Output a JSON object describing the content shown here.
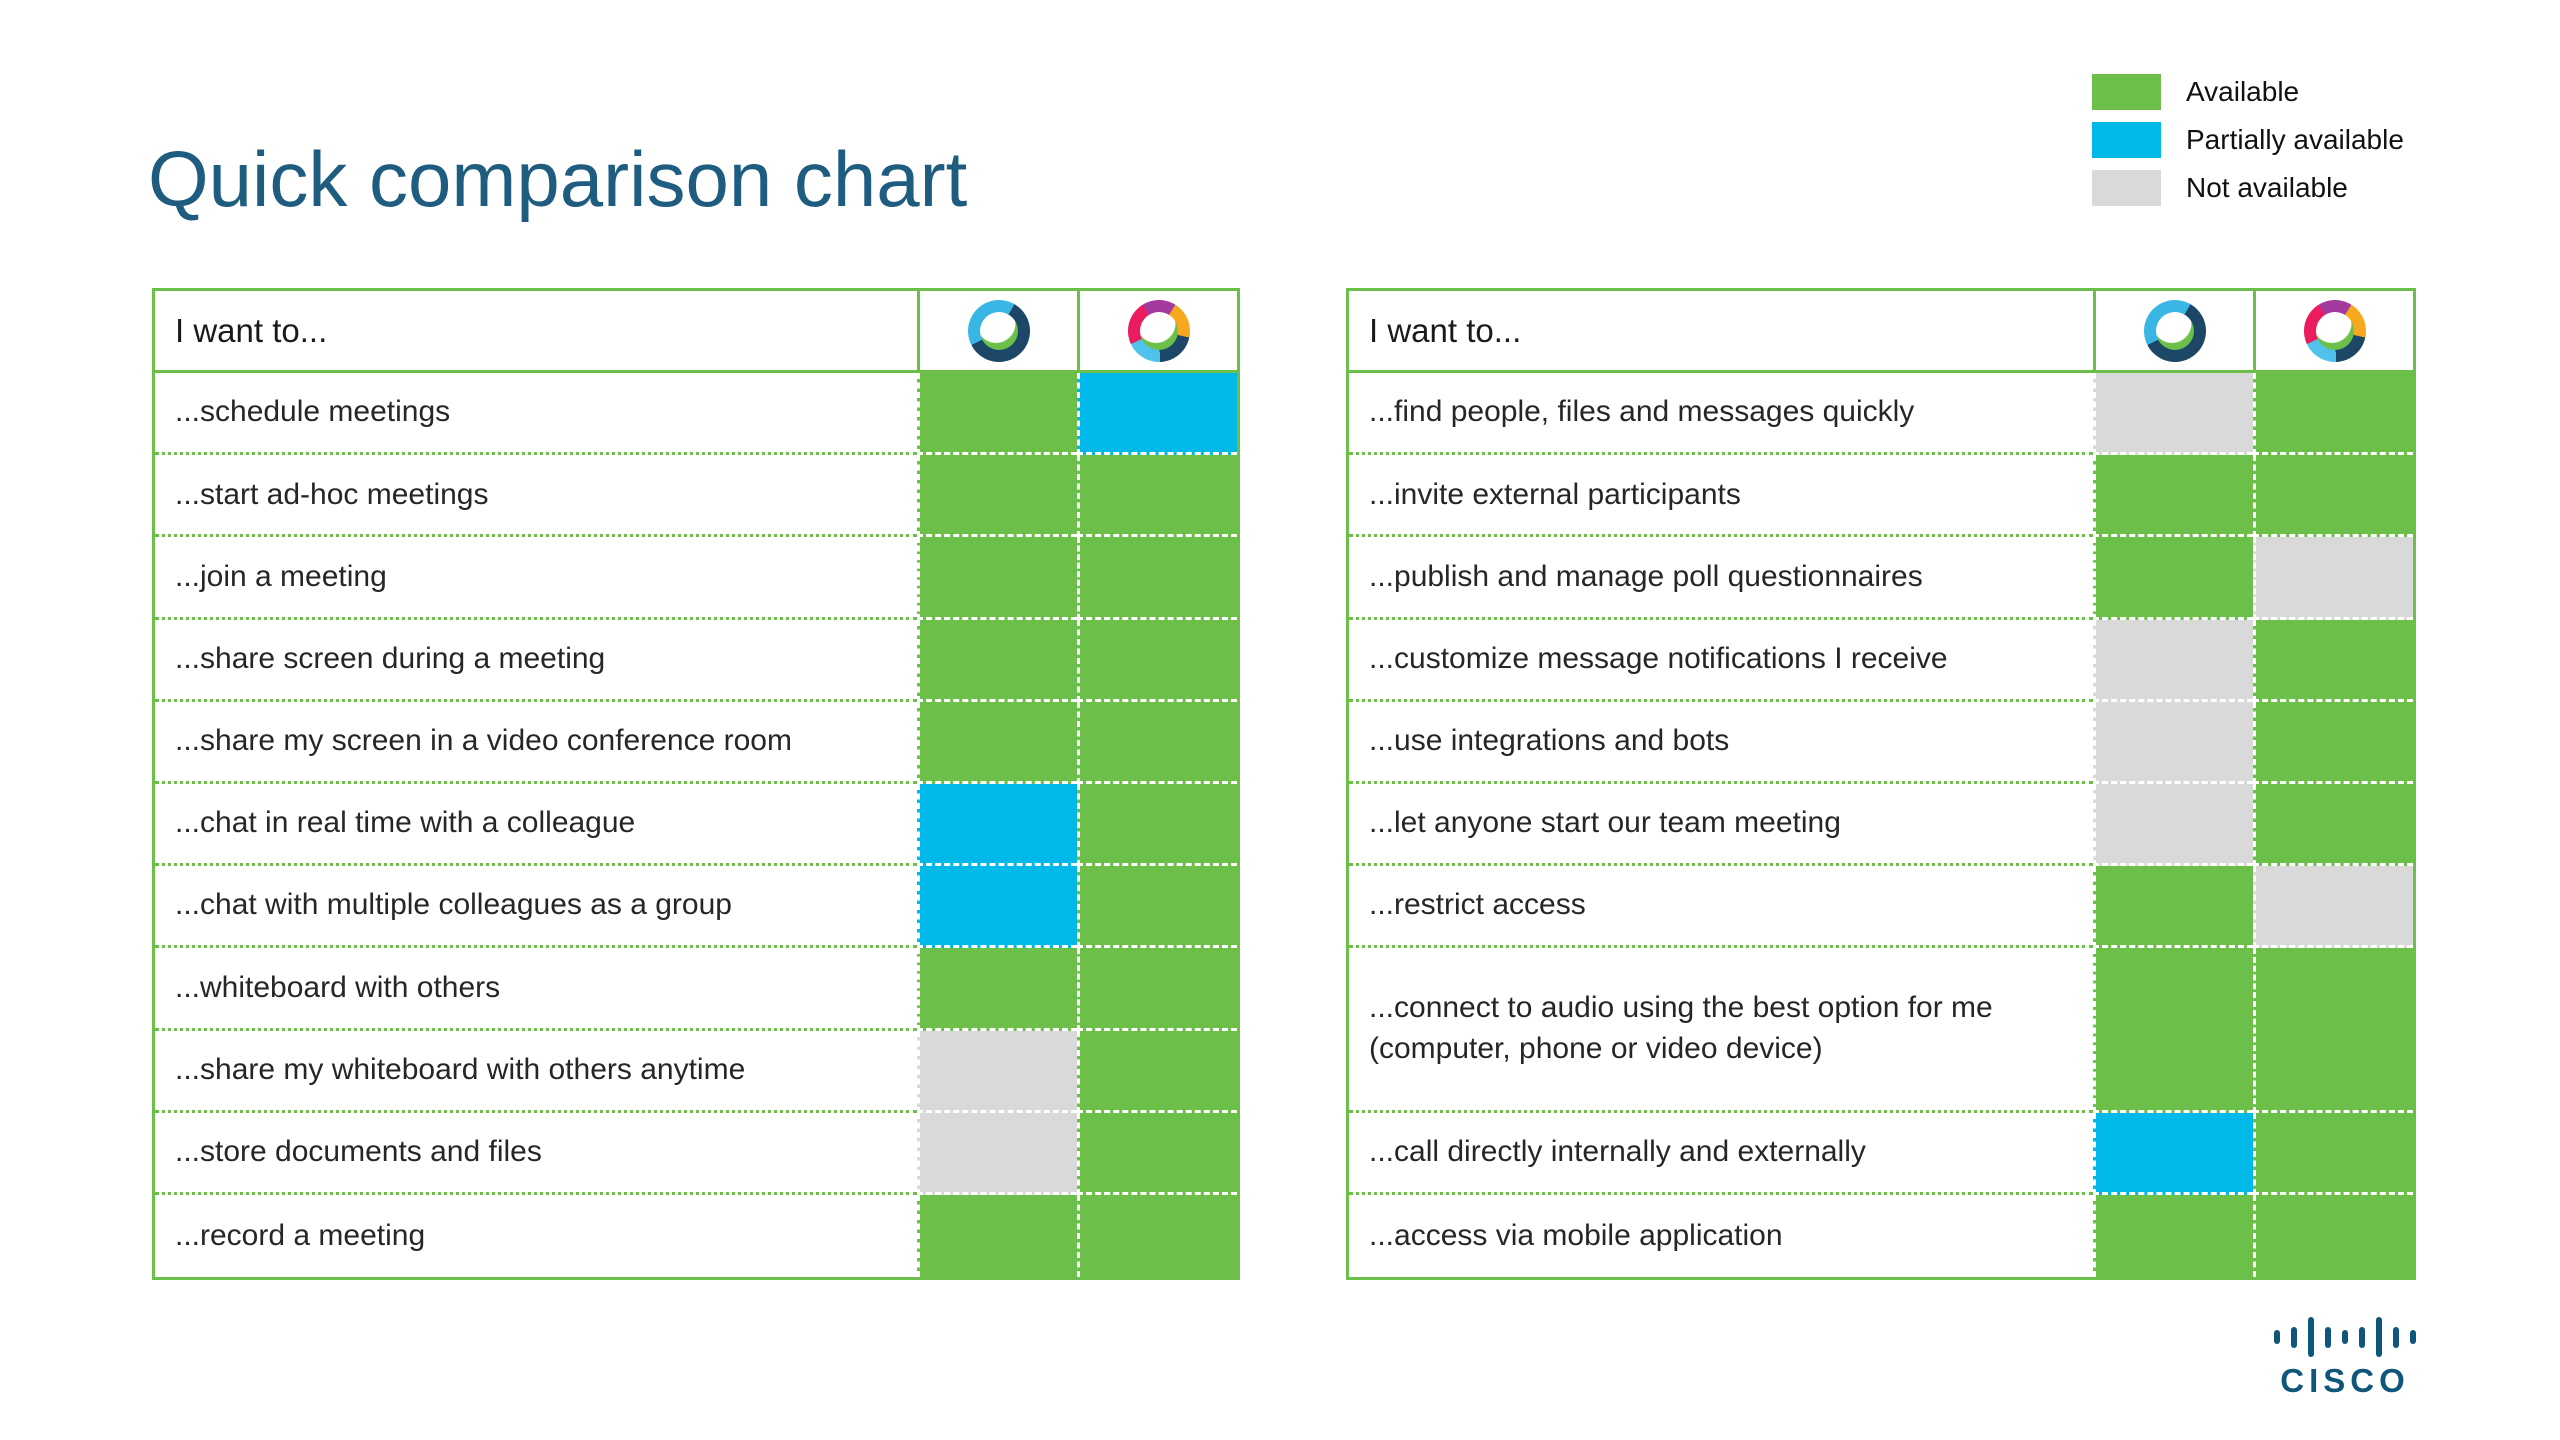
{
  "slide": {
    "title": "Quick comparison chart"
  },
  "legend": [
    {
      "label": "Available",
      "status": "available"
    },
    {
      "label": "Partially available",
      "status": "partial"
    },
    {
      "label": "Not available",
      "status": "none"
    }
  ],
  "status_colors": {
    "available": "#6cc04a",
    "partial": "#00b9e8",
    "none": "#d9d9d9"
  },
  "colors": {
    "title": "#1e5c80",
    "table_border": "#6cc04a",
    "brand_blue": "#0f567a"
  },
  "brand": {
    "name": "CISCO"
  },
  "chart_data": [
    {
      "type": "table",
      "header": "I want to...",
      "columns": [
        {
          "icon": "webex-meetings-icon"
        },
        {
          "icon": "webex-teams-icon"
        }
      ],
      "rows": [
        {
          "label": "...schedule meetings",
          "statuses": [
            "available",
            "partial"
          ]
        },
        {
          "label": "...start ad-hoc meetings",
          "statuses": [
            "available",
            "available"
          ]
        },
        {
          "label": "...join a meeting",
          "statuses": [
            "available",
            "available"
          ]
        },
        {
          "label": "...share screen during a meeting",
          "statuses": [
            "available",
            "available"
          ]
        },
        {
          "label": "...share my screen in a video conference room",
          "statuses": [
            "available",
            "available"
          ]
        },
        {
          "label": "...chat in real time with a colleague",
          "statuses": [
            "partial",
            "available"
          ]
        },
        {
          "label": "...chat with multiple colleagues as a group",
          "statuses": [
            "partial",
            "available"
          ]
        },
        {
          "label": "...whiteboard with others",
          "statuses": [
            "available",
            "available"
          ]
        },
        {
          "label": "...share my whiteboard with others anytime",
          "statuses": [
            "none",
            "available"
          ]
        },
        {
          "label": "...store documents and files",
          "statuses": [
            "none",
            "available"
          ]
        },
        {
          "label": "...record a meeting",
          "statuses": [
            "available",
            "available"
          ]
        }
      ]
    },
    {
      "type": "table",
      "header": "I want to...",
      "columns": [
        {
          "icon": "webex-meetings-icon"
        },
        {
          "icon": "webex-teams-icon"
        }
      ],
      "rows": [
        {
          "label": "...find people, files and messages quickly",
          "statuses": [
            "none",
            "available"
          ]
        },
        {
          "label": "...invite external participants",
          "statuses": [
            "available",
            "available"
          ]
        },
        {
          "label": "...publish and manage poll questionnaires",
          "statuses": [
            "available",
            "none"
          ]
        },
        {
          "label": "...customize message notifications I receive",
          "statuses": [
            "none",
            "available"
          ]
        },
        {
          "label": "...use integrations and bots",
          "statuses": [
            "none",
            "available"
          ]
        },
        {
          "label": "...let anyone start our team meeting",
          "statuses": [
            "none",
            "available"
          ]
        },
        {
          "label": "...restrict access",
          "statuses": [
            "available",
            "none"
          ]
        },
        {
          "label": "...connect to audio using the best option for me (computer, phone or video device)",
          "statuses": [
            "available",
            "available"
          ],
          "tall": true
        },
        {
          "label": "...call directly internally and externally",
          "statuses": [
            "partial",
            "available"
          ]
        },
        {
          "label": "...access via mobile application",
          "statuses": [
            "available",
            "available"
          ]
        }
      ]
    }
  ]
}
